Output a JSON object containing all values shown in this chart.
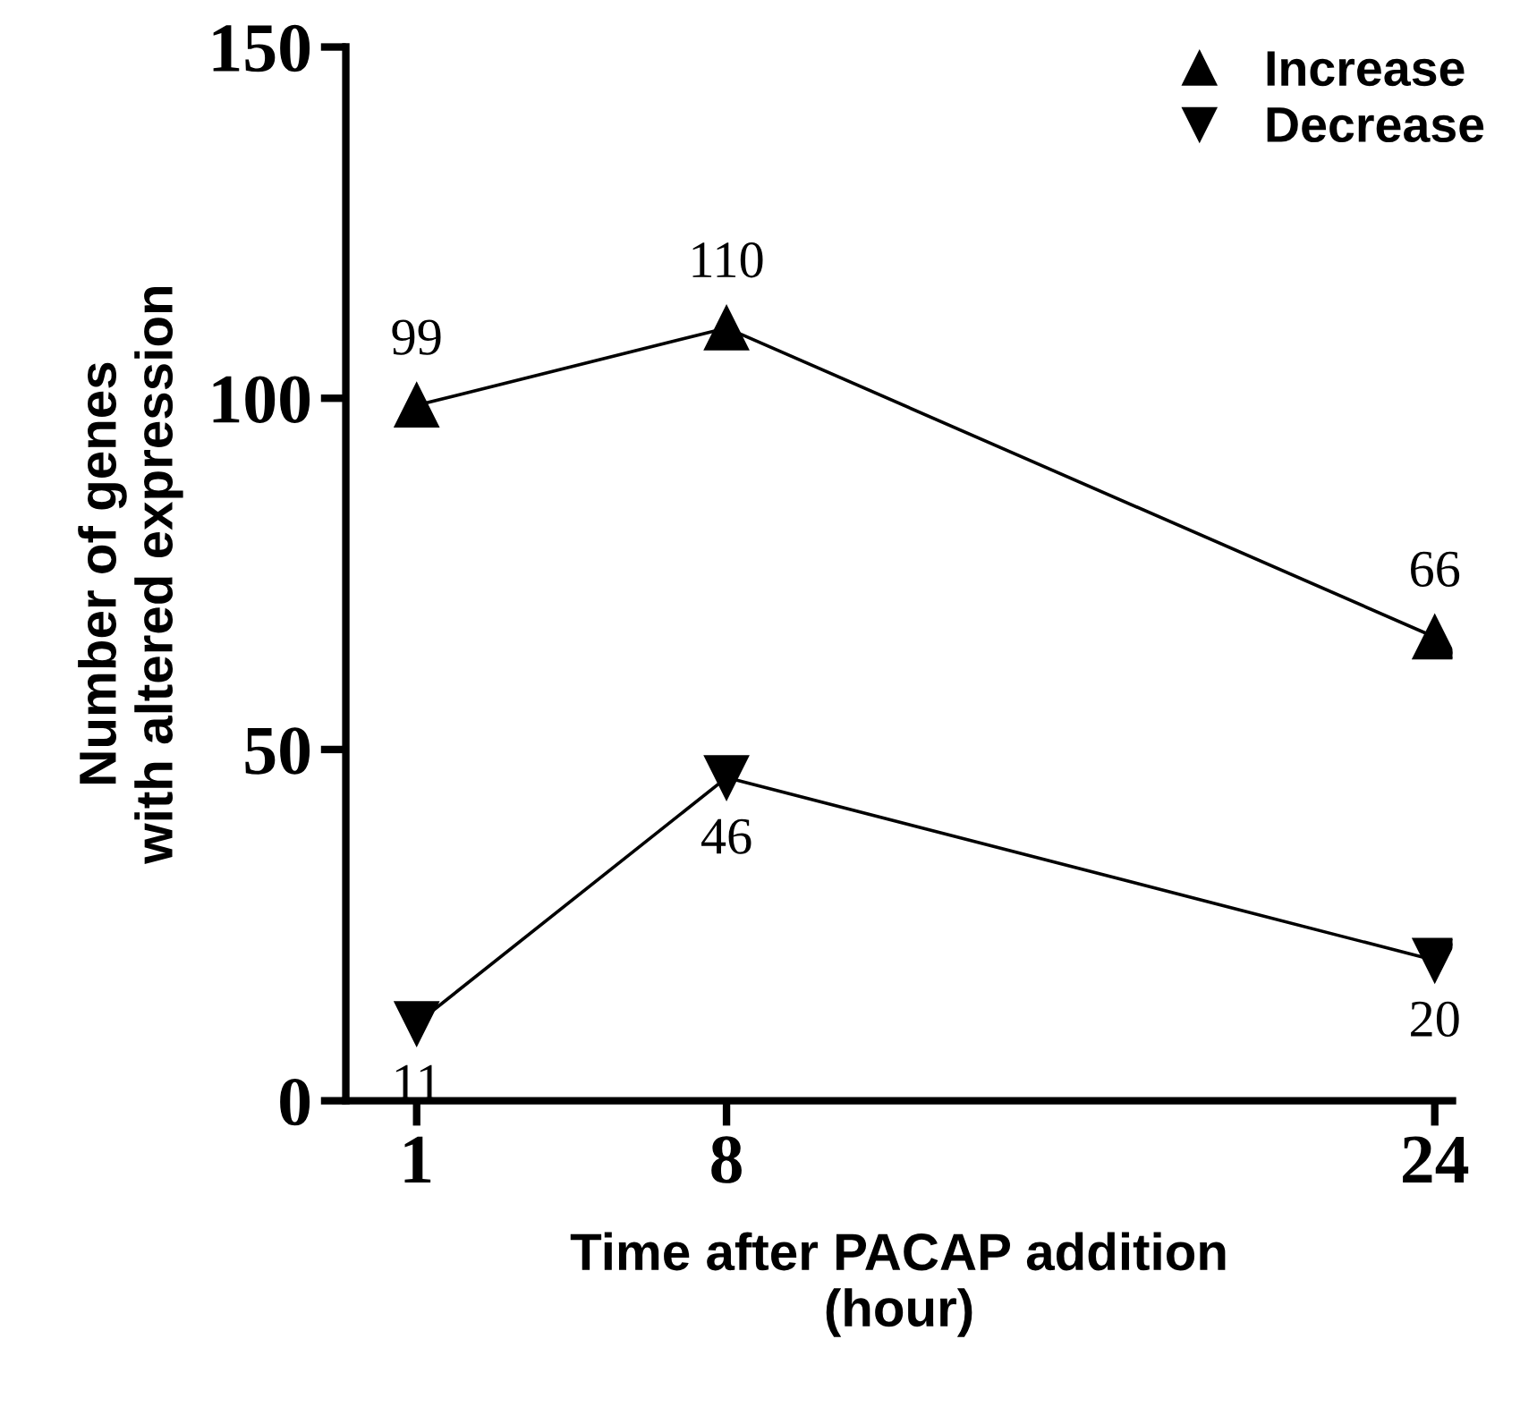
{
  "chart_data": {
    "type": "line",
    "xlabel": "Time after PACAP addition\n(hour)",
    "ylabel": "Number of genes\nwith altered expression",
    "x": [
      1,
      8,
      24
    ],
    "series": [
      {
        "name": "Increase",
        "color": "#000000",
        "values": [
          99,
          110,
          66
        ],
        "marker": "triangle"
      },
      {
        "name": "Decrease",
        "color": "#000000",
        "values": [
          11,
          46,
          20
        ],
        "marker": "triangle_down"
      }
    ],
    "xlim": [
      -0.6,
      24.4
    ],
    "xticks": [
      1,
      8,
      24
    ],
    "ylim": [
      0,
      150
    ],
    "yticks": [
      0,
      50,
      100,
      150
    ],
    "data_labels": true,
    "grid": false,
    "legend": "top right",
    "line_style": "solid"
  }
}
